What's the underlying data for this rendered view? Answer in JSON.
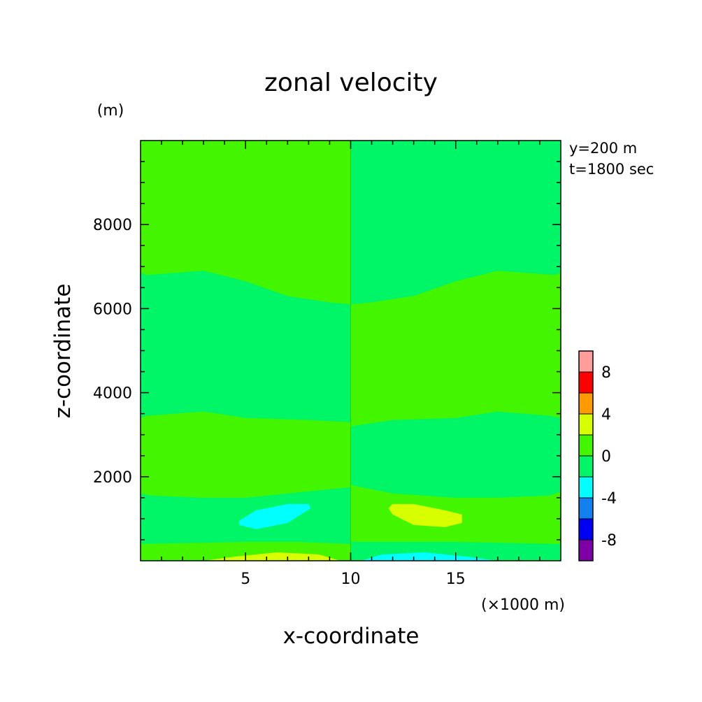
{
  "chart_data": {
    "type": "heatmap",
    "title": "zonal velocity",
    "xlabel": "x-coordinate",
    "ylabel": "z-coordinate",
    "x_unit": "(×1000 m)",
    "y_unit": "(m)",
    "xlim": [
      0,
      20
    ],
    "ylim": [
      0,
      10000
    ],
    "x_ticks": [
      "5",
      "10",
      "15"
    ],
    "x_tick_values": [
      5,
      10,
      15
    ],
    "y_ticks": [
      "2000",
      "4000",
      "6000",
      "8000"
    ],
    "y_tick_values": [
      2000,
      4000,
      6000,
      8000
    ],
    "info": [
      "y=200 m",
      "t=1800 sec"
    ],
    "colorbar": {
      "levels": [
        -10,
        -8,
        -6,
        -4,
        -2,
        0,
        2,
        4,
        6,
        8,
        10
      ],
      "colors": [
        "#7d00a6",
        "#0000f5",
        "#1480f0",
        "#00ffff",
        "#00f567",
        "#44f500",
        "#d8ff00",
        "#ff9b00",
        "#ff0000",
        "#ff9c9c"
      ],
      "labels": [
        "-8",
        "-4",
        "0",
        "4",
        "8"
      ],
      "label_values": [
        -8,
        -4,
        0,
        4,
        8
      ]
    },
    "regions": [
      {
        "name": "background-band",
        "value_range": [
          -2,
          0
        ],
        "color": "#00f567"
      },
      {
        "name": "left-top-band",
        "value_range": [
          0,
          2
        ],
        "color": "#44f500",
        "boundary": [
          [
            0,
            6850
          ],
          [
            0.3,
            6800
          ],
          [
            3,
            6900
          ],
          [
            5,
            6650
          ],
          [
            7,
            6300
          ],
          [
            9,
            6150
          ],
          [
            10,
            6100
          ],
          [
            10,
            10000
          ],
          [
            0,
            10000
          ]
        ]
      },
      {
        "name": "right-upper-band",
        "value_range": [
          0,
          2
        ],
        "color": "#44f500",
        "boundary": [
          [
            10,
            6100
          ],
          [
            11,
            6150
          ],
          [
            13,
            6300
          ],
          [
            15,
            6650
          ],
          [
            17,
            6900
          ],
          [
            19.7,
            6800
          ],
          [
            20,
            6850
          ],
          [
            20,
            3400
          ],
          [
            19.5,
            3450
          ],
          [
            17,
            3550
          ],
          [
            15,
            3400
          ],
          [
            12,
            3350
          ],
          [
            10,
            3200
          ]
        ]
      },
      {
        "name": "left-middle-band",
        "value_range": [
          0,
          2
        ],
        "color": "#44f500",
        "boundary": [
          [
            0,
            3400
          ],
          [
            0.3,
            3450
          ],
          [
            3,
            3550
          ],
          [
            5,
            3400
          ],
          [
            8,
            3350
          ],
          [
            10,
            3300
          ],
          [
            10,
            1750
          ],
          [
            7,
            1600
          ],
          [
            5,
            1500
          ],
          [
            3,
            1500
          ],
          [
            0.5,
            1550
          ],
          [
            0,
            1600
          ]
        ]
      },
      {
        "name": "right-lower-band",
        "value_range": [
          0,
          2
        ],
        "color": "#44f500",
        "boundary": [
          [
            10,
            1800
          ],
          [
            12,
            1600
          ],
          [
            15,
            1500
          ],
          [
            17,
            1500
          ],
          [
            19.5,
            1550
          ],
          [
            20,
            1650
          ],
          [
            20,
            400
          ],
          [
            15,
            450
          ],
          [
            12.5,
            450
          ],
          [
            10,
            450
          ]
        ]
      },
      {
        "name": "left-bottom-band",
        "value_range": [
          0,
          2
        ],
        "color": "#44f500",
        "boundary": [
          [
            0,
            400
          ],
          [
            5,
            450
          ],
          [
            7.5,
            450
          ],
          [
            10,
            400
          ],
          [
            10,
            0
          ],
          [
            0,
            0
          ]
        ]
      },
      {
        "name": "cyan-cell-mid",
        "value_range": [
          -4,
          -2
        ],
        "color": "#00ffff",
        "boundary": [
          [
            4.7,
            850
          ],
          [
            5.5,
            750
          ],
          [
            7,
            900
          ],
          [
            8.1,
            1250
          ],
          [
            8,
            1350
          ],
          [
            7,
            1350
          ],
          [
            5.5,
            1200
          ],
          [
            4.7,
            950
          ]
        ]
      },
      {
        "name": "yellow-cell-mid",
        "value_range": [
          2,
          4
        ],
        "color": "#d8ff00",
        "boundary": [
          [
            11.8,
            1250
          ],
          [
            12,
            1350
          ],
          [
            13,
            1350
          ],
          [
            14.5,
            1200
          ],
          [
            15.3,
            1100
          ],
          [
            15.3,
            900
          ],
          [
            14.5,
            800
          ],
          [
            13,
            850
          ],
          [
            12,
            1100
          ]
        ]
      },
      {
        "name": "yellow-cell-bottom",
        "value_range": [
          2,
          4
        ],
        "color": "#d8ff00",
        "boundary": [
          [
            3,
            0
          ],
          [
            4.5,
            100
          ],
          [
            6.5,
            200
          ],
          [
            8.5,
            150
          ],
          [
            9.5,
            0
          ]
        ]
      },
      {
        "name": "cyan-cell-bottom",
        "value_range": [
          -4,
          -2
        ],
        "color": "#00ffff",
        "boundary": [
          [
            10.5,
            0
          ],
          [
            11.5,
            150
          ],
          [
            13.5,
            200
          ],
          [
            15.5,
            100
          ],
          [
            17,
            0
          ]
        ]
      }
    ]
  }
}
